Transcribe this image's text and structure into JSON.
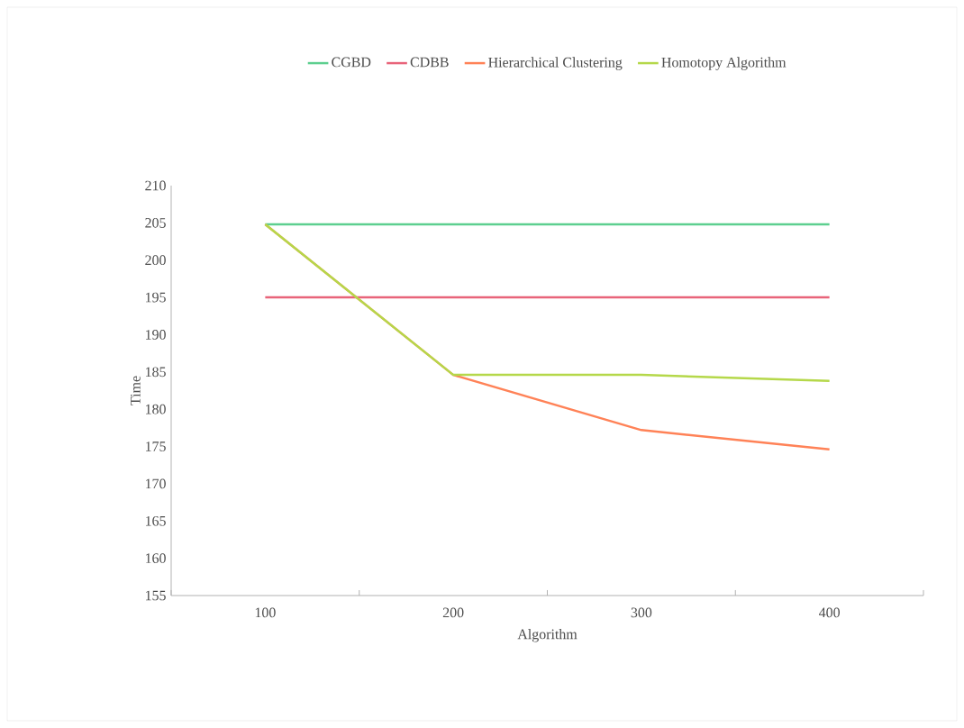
{
  "chart_data": {
    "type": "line",
    "xlabel": "Algorithm",
    "ylabel": "Time",
    "categories": [
      "100",
      "200",
      "300",
      "400"
    ],
    "series": [
      {
        "name": "CGBD",
        "color": "#5dcf8f",
        "values": [
          204.8,
          204.8,
          204.8,
          204.8
        ]
      },
      {
        "name": "CDBB",
        "color": "#e8647a",
        "values": [
          195,
          195,
          195,
          195
        ]
      },
      {
        "name": "Hierarchical Clustering",
        "color": "#ff8257",
        "values": [
          204.8,
          184.6,
          177.2,
          174.6
        ]
      },
      {
        "name": "Homotopy Algorithm",
        "color": "#b5d84a",
        "values": [
          204.8,
          184.6,
          184.6,
          183.8
        ]
      }
    ],
    "ylim": [
      155,
      210
    ],
    "yticks": [
      155,
      160,
      165,
      170,
      175,
      180,
      185,
      190,
      195,
      200,
      205,
      210
    ],
    "legend": "top",
    "grid": false,
    "marker": "none",
    "line_style": "solid"
  }
}
